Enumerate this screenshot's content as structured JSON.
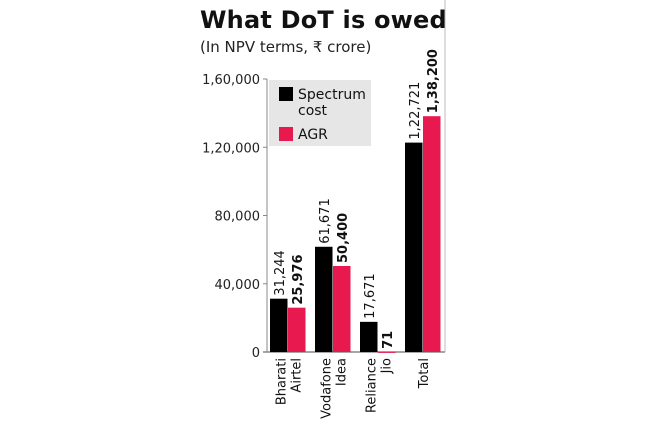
{
  "chart_data": {
    "type": "bar",
    "title": "What DoT is owed",
    "subtitle": "(In NPV terms, ₹ crore)",
    "categories": [
      [
        "Bharati",
        "Airtel"
      ],
      [
        "Vodafone",
        "Idea"
      ],
      [
        "Reliance",
        "Jio"
      ],
      [
        "Total"
      ]
    ],
    "series": [
      {
        "name": "Spectrum cost",
        "legend_lines": [
          "Spectrum",
          "cost"
        ],
        "color": "#000000",
        "values": [
          31244,
          61671,
          17671,
          122721
        ],
        "labels": [
          "31,244",
          "61,671",
          "17,671",
          "1,22,721"
        ],
        "bold": false
      },
      {
        "name": "AGR",
        "legend_lines": [
          "AGR"
        ],
        "color": "#e8194f",
        "values": [
          25976,
          50400,
          71,
          138200
        ],
        "labels": [
          "25,976",
          "50,400",
          "71",
          "1,38,200"
        ],
        "bold": true
      }
    ],
    "yticks": [
      0,
      40000,
      80000,
      120000,
      160000
    ],
    "ytick_labels": [
      "0",
      "40,000",
      "80,000",
      "1,20,000",
      "1,60,000"
    ],
    "ylim": [
      0,
      160000
    ],
    "legend": "top-left",
    "legend_bg": "#e6e6e6",
    "xlabel": "",
    "ylabel": ""
  }
}
